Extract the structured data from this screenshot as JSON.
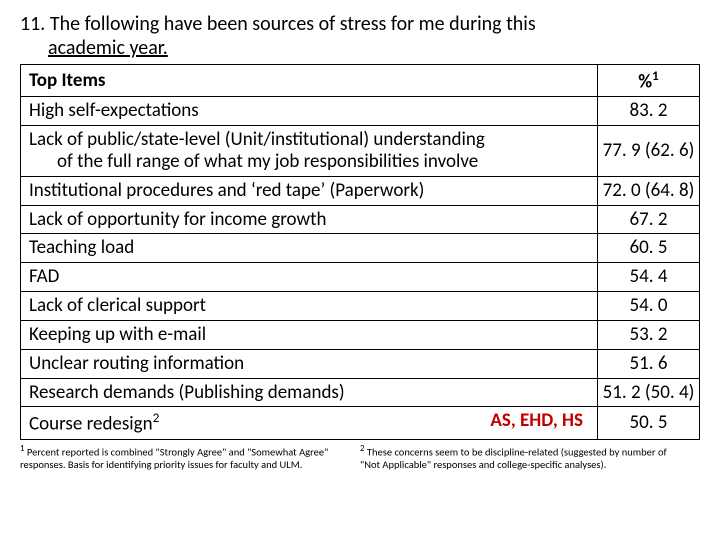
{
  "question": {
    "number": "11.",
    "line1": "The following have been sources of stress for me during this",
    "line2": "academic year."
  },
  "table": {
    "header_item": "Top Items",
    "header_pct": "%",
    "header_pct_sup": "1",
    "rows": [
      {
        "item": "High self-expectations",
        "pct": "83. 2"
      },
      {
        "item_line1": "Lack of public/state-level (Unit/institutional) understanding",
        "item_line2": "of the full range of what my job responsibilities involve",
        "pct": "77. 9 (62. 6)",
        "multiline": true
      },
      {
        "item": "Institutional procedures and ‘red tape’ (Paperwork)",
        "pct": "72. 0 (64. 8)"
      },
      {
        "item": "Lack of opportunity for income growth",
        "pct": "67. 2"
      },
      {
        "item": "Teaching load",
        "pct": "60. 5"
      },
      {
        "item": "FAD",
        "pct": "54. 4"
      },
      {
        "item": "Lack of clerical support",
        "pct": "54. 0"
      },
      {
        "item": "Keeping up with e-mail",
        "pct": "53. 2"
      },
      {
        "item": "Unclear routing information",
        "pct": "51. 6"
      },
      {
        "item": "Research demands (Publishing demands)",
        "pct": "51. 2 (50. 4)"
      },
      {
        "item": "Course redesign",
        "sup": "2",
        "red_label": "AS, EHD, HS",
        "pct": "50. 5"
      }
    ]
  },
  "footnotes": {
    "fn1_sup": "1",
    "fn1": " Percent reported is combined \"Strongly Agree\" and \"Somewhat Agree\" responses. Basis for identifying  priority issues for faculty and ULM.",
    "fn2_sup": "2",
    "fn2": " These concerns seem to be discipline-related (suggested by number of \"Not Applicable\" responses and college-specific analyses)."
  },
  "colors": {
    "text": "#000000",
    "border": "#000000",
    "red": "#c00000",
    "background": "#ffffff"
  }
}
